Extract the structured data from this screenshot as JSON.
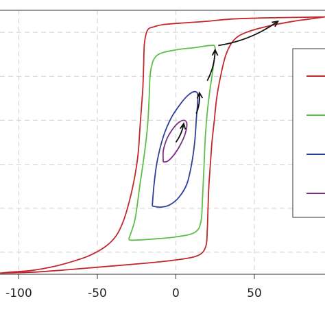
{
  "chart_data": {
    "type": "line",
    "title": "",
    "xlabel": "",
    "ylabel": "",
    "xlim": [
      -112,
      95
    ],
    "ylim": [
      -1.2,
      1.2
    ],
    "xticks": [
      -100,
      -50,
      0,
      50
    ],
    "xtick_labels": [
      "-100",
      "-50",
      "0",
      "50"
    ],
    "ygrid": [
      -1.0,
      -0.6,
      -0.2,
      0.2,
      0.6,
      1.0
    ],
    "grid": true,
    "legend": {
      "position": "right",
      "entries": [
        "",
        "",
        "",
        ""
      ]
    },
    "series": [
      {
        "color": "#c1272d",
        "loop": [
          [
            -112,
            -1.19
          ],
          [
            -105,
            -1.18
          ],
          [
            -95,
            -1.17
          ],
          [
            -85,
            -1.15
          ],
          [
            -75,
            -1.12
          ],
          [
            -65,
            -1.08
          ],
          [
            -55,
            -1.03
          ],
          [
            -45,
            -0.95
          ],
          [
            -38,
            -0.85
          ],
          [
            -33,
            -0.7
          ],
          [
            -29,
            -0.5
          ],
          [
            -26,
            -0.3
          ],
          [
            -24,
            -0.1
          ],
          [
            -23,
            0.1
          ],
          [
            -22,
            0.3
          ],
          [
            -21,
            0.5
          ],
          [
            -20.5,
            0.7
          ],
          [
            -20,
            0.9
          ],
          [
            -18,
            1.02
          ],
          [
            -14,
            1.05
          ],
          [
            -8,
            1.07
          ],
          [
            0,
            1.08
          ],
          [
            10,
            1.09
          ],
          [
            20,
            1.1
          ],
          [
            35,
            1.12
          ],
          [
            55,
            1.13
          ],
          [
            75,
            1.135
          ],
          [
            95,
            1.14
          ],
          [
            95,
            1.14
          ],
          [
            85,
            1.12
          ],
          [
            75,
            1.1
          ],
          [
            60,
            1.06
          ],
          [
            45,
            1.0
          ],
          [
            37,
            0.93
          ],
          [
            32,
            0.8
          ],
          [
            28.5,
            0.6
          ],
          [
            26,
            0.4
          ],
          [
            24.5,
            0.2
          ],
          [
            23,
            0.0
          ],
          [
            22,
            -0.2
          ],
          [
            21,
            -0.4
          ],
          [
            20.5,
            -0.6
          ],
          [
            20,
            -0.8
          ],
          [
            19,
            -0.95
          ],
          [
            14,
            -1.03
          ],
          [
            0,
            -1.07
          ],
          [
            -20,
            -1.1
          ],
          [
            -45,
            -1.13
          ],
          [
            -70,
            -1.16
          ],
          [
            -90,
            -1.18
          ],
          [
            -112,
            -1.19
          ]
        ]
      },
      {
        "color": "#5dbf4a",
        "loop": [
          [
            -30,
            -0.88
          ],
          [
            -26,
            -0.7
          ],
          [
            -23,
            -0.4
          ],
          [
            -20,
            -0.1
          ],
          [
            -18,
            0.15
          ],
          [
            -17,
            0.4
          ],
          [
            -16,
            0.65
          ],
          [
            -12,
            0.79
          ],
          [
            0,
            0.84
          ],
          [
            12,
            0.86
          ],
          [
            22,
            0.88
          ],
          [
            25,
            0.86
          ],
          [
            24,
            0.7
          ],
          [
            21,
            0.4
          ],
          [
            19,
            0.1
          ],
          [
            18,
            -0.2
          ],
          [
            17,
            -0.5
          ],
          [
            16,
            -0.72
          ],
          [
            12,
            -0.82
          ],
          [
            0,
            -0.86
          ],
          [
            -15,
            -0.88
          ],
          [
            -28,
            -0.89
          ],
          [
            -30,
            -0.88
          ]
        ]
      },
      {
        "color": "#2e3f9b",
        "loop": [
          [
            -15,
            -0.58
          ],
          [
            -14,
            -0.4
          ],
          [
            -12,
            -0.18
          ],
          [
            -8,
            0.05
          ],
          [
            -3,
            0.22
          ],
          [
            3,
            0.35
          ],
          [
            8,
            0.43
          ],
          [
            12,
            0.46
          ],
          [
            14,
            0.42
          ],
          [
            13,
            0.2
          ],
          [
            12,
            0.0
          ],
          [
            10,
            -0.2
          ],
          [
            7,
            -0.38
          ],
          [
            2,
            -0.5
          ],
          [
            -4,
            -0.57
          ],
          [
            -10,
            -0.59
          ],
          [
            -15,
            -0.58
          ]
        ]
      },
      {
        "color": "#7b2d86",
        "loop": [
          [
            -8,
            -0.18
          ],
          [
            -8,
            -0.08
          ],
          [
            -6,
            0.02
          ],
          [
            -3,
            0.1
          ],
          [
            1,
            0.17
          ],
          [
            5,
            0.2
          ],
          [
            7,
            0.17
          ],
          [
            6,
            0.08
          ],
          [
            3,
            -0.02
          ],
          [
            -1,
            -0.11
          ],
          [
            -5,
            -0.17
          ],
          [
            -8,
            -0.18
          ]
        ]
      }
    ],
    "arrows": [
      {
        "from": [
          0,
          0.0
        ],
        "to": [
          5,
          0.17
        ]
      },
      {
        "from": [
          13,
          0.26
        ],
        "to": [
          15,
          0.45
        ]
      },
      {
        "from": [
          20,
          0.56
        ],
        "to": [
          25,
          0.84
        ]
      },
      {
        "from": [
          27,
          0.88
        ],
        "to": [
          65,
          1.1
        ]
      }
    ]
  }
}
